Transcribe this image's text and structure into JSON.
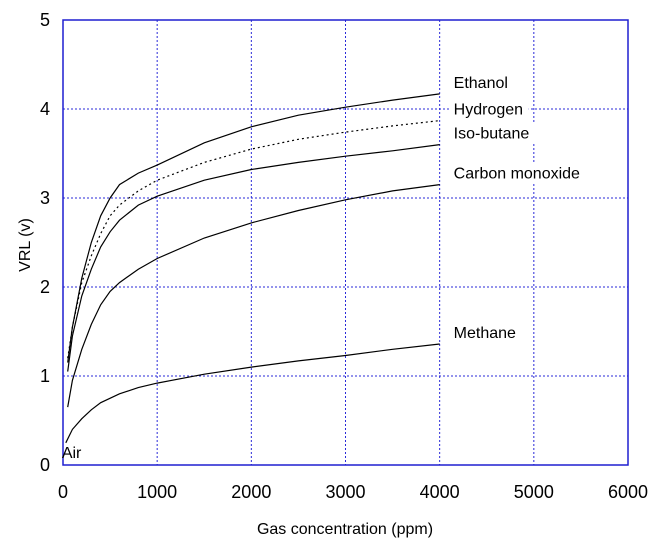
{
  "chart_data": {
    "type": "line",
    "title": "",
    "xlabel": "Gas concentration (ppm)",
    "ylabel": "VRL (v)",
    "xlim": [
      0,
      6000
    ],
    "ylim": [
      0,
      5
    ],
    "xticks": [
      "0",
      "1000",
      "2000",
      "3000",
      "4000",
      "5000",
      "6000"
    ],
    "yticks": [
      "0",
      "1",
      "2",
      "3",
      "4",
      "5"
    ],
    "grid": true,
    "series": [
      {
        "name": "Ethanol",
        "style": "solid",
        "x": [
          50,
          100,
          200,
          300,
          400,
          500,
          600,
          800,
          1000,
          1500,
          2000,
          2500,
          3000,
          3500,
          4000
        ],
        "y": [
          1.15,
          1.55,
          2.1,
          2.5,
          2.8,
          3.0,
          3.15,
          3.28,
          3.37,
          3.62,
          3.8,
          3.93,
          4.02,
          4.1,
          4.17
        ]
      },
      {
        "name": "Hydrogen",
        "style": "dashed",
        "x": [
          50,
          100,
          200,
          300,
          400,
          500,
          600,
          800,
          1000,
          1500,
          2000,
          2500,
          3000,
          3500,
          4000
        ],
        "y": [
          1.2,
          1.55,
          2.05,
          2.35,
          2.6,
          2.8,
          2.92,
          3.08,
          3.2,
          3.4,
          3.55,
          3.66,
          3.74,
          3.81,
          3.87
        ]
      },
      {
        "name": "Iso-butane",
        "style": "solid",
        "x": [
          50,
          100,
          200,
          300,
          400,
          500,
          600,
          800,
          1000,
          1500,
          2000,
          2500,
          3000,
          3500,
          4000
        ],
        "y": [
          1.05,
          1.45,
          1.9,
          2.2,
          2.45,
          2.62,
          2.75,
          2.92,
          3.02,
          3.2,
          3.32,
          3.4,
          3.47,
          3.53,
          3.6
        ]
      },
      {
        "name": "Carbon monoxide",
        "style": "solid",
        "x": [
          50,
          100,
          200,
          300,
          400,
          500,
          600,
          800,
          1000,
          1500,
          2000,
          2500,
          3000,
          3500,
          4000
        ],
        "y": [
          0.65,
          0.95,
          1.3,
          1.58,
          1.8,
          1.95,
          2.05,
          2.2,
          2.32,
          2.55,
          2.72,
          2.86,
          2.98,
          3.08,
          3.15
        ]
      },
      {
        "name": "Methane",
        "style": "solid",
        "x": [
          30,
          100,
          200,
          300,
          400,
          600,
          800,
          1000,
          1500,
          2000,
          2500,
          3000,
          3500,
          4000
        ],
        "y": [
          0.25,
          0.4,
          0.52,
          0.62,
          0.7,
          0.8,
          0.87,
          0.92,
          1.02,
          1.1,
          1.17,
          1.23,
          1.3,
          1.36
        ]
      }
    ],
    "annotations": [
      {
        "text": "Air",
        "x": 200,
        "y": 0.1
      }
    ]
  }
}
